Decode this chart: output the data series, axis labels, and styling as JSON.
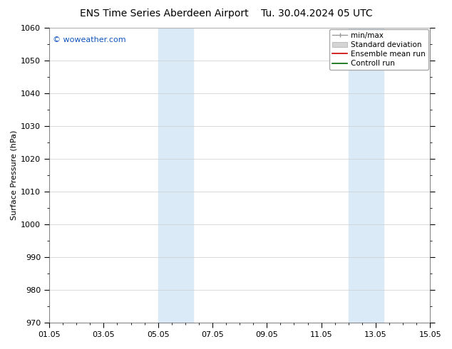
{
  "title": "ENS Time Series Aberdeen Airport",
  "title2": "Tu. 30.04.2024 05 UTC",
  "ylabel": "Surface Pressure (hPa)",
  "ylim": [
    970,
    1060
  ],
  "yticks": [
    970,
    980,
    990,
    1000,
    1010,
    1020,
    1030,
    1040,
    1050,
    1060
  ],
  "xlim_start": 0,
  "xlim_end": 14,
  "xtick_positions": [
    0,
    2,
    4,
    6,
    8,
    10,
    12,
    14
  ],
  "xtick_labels": [
    "01.05",
    "03.05",
    "05.05",
    "07.05",
    "09.05",
    "11.05",
    "13.05",
    "15.05"
  ],
  "blue_bands": [
    {
      "xmin": 4.0,
      "xmax": 5.3
    },
    {
      "xmin": 11.0,
      "xmax": 12.3
    }
  ],
  "band_color": "#daeaf7",
  "watermark": "© woweather.com",
  "watermark_color": "#1155bb",
  "legend_items": [
    {
      "label": "min/max",
      "color": "#aaaaaa",
      "type": "line_caps"
    },
    {
      "label": "Standard deviation",
      "color": "#cccccc",
      "type": "box"
    },
    {
      "label": "Ensemble mean run",
      "color": "#cc0000",
      "type": "line"
    },
    {
      "label": "Controll run",
      "color": "#006600",
      "type": "line"
    }
  ],
  "bg_color": "#ffffff",
  "grid_color": "#cccccc",
  "spine_color": "#888888",
  "tick_color": "#000000",
  "title_fontsize": 10,
  "label_fontsize": 8,
  "tick_fontsize": 8,
  "watermark_fontsize": 8,
  "legend_fontsize": 7.5
}
